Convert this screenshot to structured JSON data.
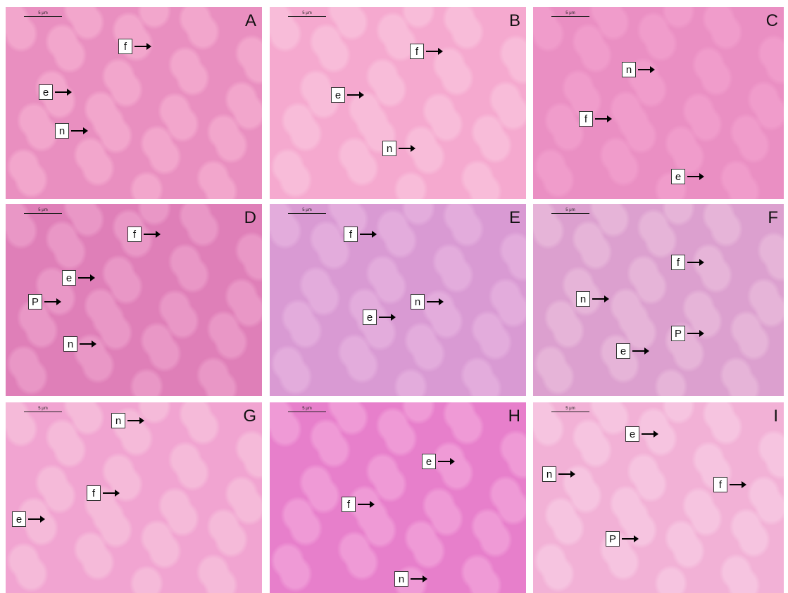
{
  "panels": [
    {
      "letter": "A",
      "scale": "5 μm",
      "markers": [
        "f",
        "e",
        "n"
      ]
    },
    {
      "letter": "B",
      "scale": "5 μm",
      "markers": [
        "f",
        "e",
        "n"
      ]
    },
    {
      "letter": "C",
      "scale": "5 μm",
      "markers": [
        "n",
        "f",
        "e"
      ]
    },
    {
      "letter": "D",
      "scale": "5 μm",
      "markers": [
        "f",
        "e",
        "P",
        "n"
      ]
    },
    {
      "letter": "E",
      "scale": "5 μm",
      "markers": [
        "f",
        "n",
        "e"
      ]
    },
    {
      "letter": "F",
      "scale": "5 μm",
      "markers": [
        "f",
        "n",
        "P",
        "e"
      ]
    },
    {
      "letter": "G",
      "scale": "5 μm",
      "markers": [
        "n",
        "f",
        "e"
      ]
    },
    {
      "letter": "H",
      "scale": "5 μm",
      "markers": [
        "e",
        "f",
        "n"
      ]
    },
    {
      "letter": "I",
      "scale": "5 μm",
      "markers": [
        "e",
        "n",
        "f",
        "P"
      ]
    }
  ]
}
